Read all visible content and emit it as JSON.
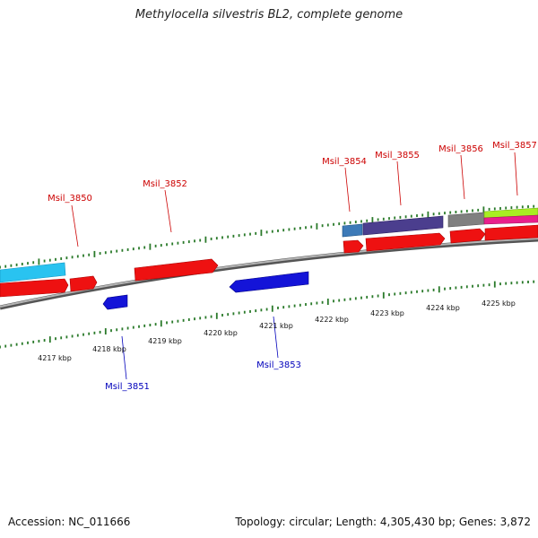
{
  "title": "Methylocella silvestris BL2, complete genome",
  "accession": "Accession: NC_011666",
  "topology": "Topology: circular; Length: 4,305,430 bp; Genes: 3,872",
  "colors": {
    "forward_label": "#cc0000",
    "reverse_label": "#0000bb",
    "tick": "#2a7a2a",
    "backbone": "#8a8a8a"
  },
  "scale_labels": [
    "4217 kbp",
    "4218 kbp",
    "4219 kbp",
    "4220 kbp",
    "4221 kbp",
    "4222 kbp",
    "4223 kbp",
    "4224 kbp",
    "4225 kbp"
  ],
  "gene_labels": [
    {
      "text": "Msil_3850",
      "strand": "forward"
    },
    {
      "text": "Msil_3851",
      "strand": "reverse"
    },
    {
      "text": "Msil_3852",
      "strand": "forward"
    },
    {
      "text": "Msil_3853",
      "strand": "reverse"
    },
    {
      "text": "Msil_3854",
      "strand": "forward"
    },
    {
      "text": "Msil_3855",
      "strand": "forward"
    },
    {
      "text": "Msil_3856",
      "strand": "forward"
    },
    {
      "text": "Msil_3857",
      "strand": "forward"
    }
  ]
}
